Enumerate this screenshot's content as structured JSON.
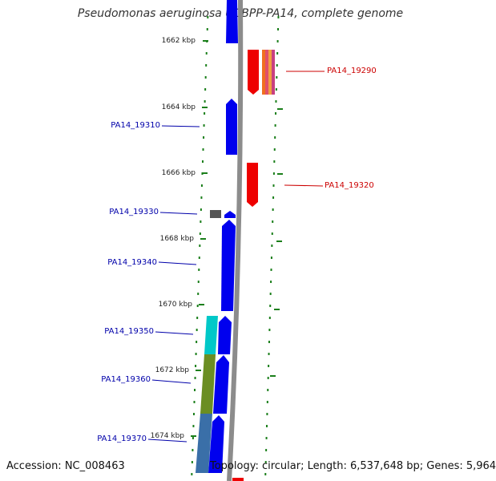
{
  "title": "Pseudomonas aeruginosa UCBPP-PA14, complete genome",
  "footer": {
    "accession": "Accession: NC_008463",
    "topology": "Topology: circular; Length: 6,537,648 bp; Genes: 5,964"
  },
  "colors": {
    "backbone": "#8c8c8c",
    "tick": "#1b7f1b",
    "forward_gene": "#0000ee",
    "reverse_gene": "#ee0000",
    "label_forward": "#0000aa",
    "label_reverse": "#cc0000"
  },
  "scale_ticks": [
    "1662 kbp",
    "1664 kbp",
    "1666 kbp",
    "1668 kbp",
    "1670 kbp",
    "1672 kbp",
    "1674 kbp"
  ],
  "genes": [
    {
      "label": "PA14_19290",
      "strand": "reverse",
      "color": "#ee0000"
    },
    {
      "label": "PA14_19310",
      "strand": "forward",
      "color": "#0000ee"
    },
    {
      "label": "PA14_19320",
      "strand": "reverse",
      "color": "#ee0000"
    },
    {
      "label": "PA14_19330",
      "strand": "forward",
      "color": "#0000ee"
    },
    {
      "label": "PA14_19340",
      "strand": "forward",
      "color": "#0000ee"
    },
    {
      "label": "PA14_19350",
      "strand": "forward",
      "color": "#0000ee"
    },
    {
      "label": "PA14_19360",
      "strand": "forward",
      "color": "#0000ee"
    },
    {
      "label": "PA14_19370",
      "strand": "forward",
      "color": "#0000ee"
    }
  ],
  "features": [
    {
      "name": "reverse-feature-19290",
      "colors": [
        "#f07020",
        "#e0506a",
        "#f0a040",
        "#c84080"
      ]
    },
    {
      "name": "feature-19330",
      "colors": [
        "#555555"
      ]
    },
    {
      "name": "feature-19350",
      "colors": [
        "#00c8c8"
      ]
    },
    {
      "name": "feature-19360",
      "colors": [
        "#6b8e23"
      ]
    },
    {
      "name": "feature-19370",
      "colors": [
        "#3a6fa8"
      ]
    }
  ]
}
